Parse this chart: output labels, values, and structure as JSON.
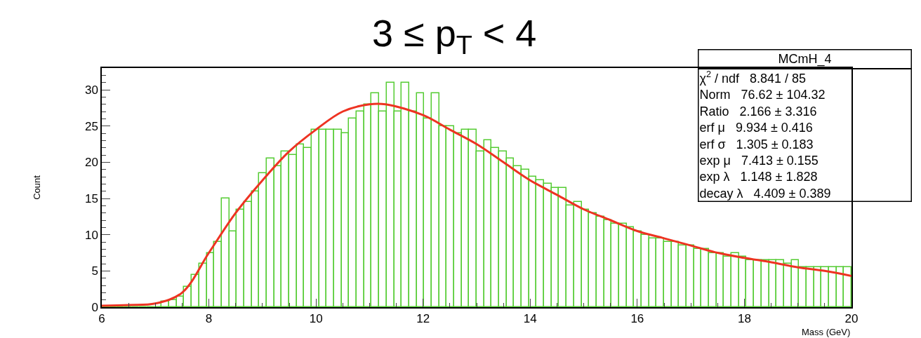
{
  "chart_data": {
    "type": "histogram",
    "title": "3 ≤ p$_{T}$ < 4",
    "xlabel": "Mass (GeV)",
    "ylabel": "Count",
    "bins": [
      6.0,
      6.14,
      6.28,
      6.42,
      6.56,
      6.7,
      6.84,
      6.98,
      7.12,
      7.26,
      7.4,
      7.54,
      7.68,
      7.82,
      7.96,
      8.1,
      8.24,
      8.38,
      8.52,
      8.66,
      8.8,
      8.94,
      9.08,
      9.22,
      9.36,
      9.5,
      9.64,
      9.78,
      9.92,
      10.06,
      10.2,
      10.34,
      10.48,
      10.62,
      10.76,
      10.9,
      11.04,
      11.18,
      11.32,
      11.46,
      11.6,
      11.74,
      11.88,
      12.02,
      12.16,
      12.3,
      12.44,
      12.58,
      12.72,
      12.86,
      13.0,
      13.14,
      13.28,
      13.42,
      13.56,
      13.7,
      13.84,
      13.98,
      14.12,
      14.26,
      14.4,
      14.54,
      14.68,
      14.82,
      14.96,
      15.1,
      15.24,
      15.38,
      15.52,
      15.66,
      15.8,
      15.94,
      16.08,
      16.22,
      16.36,
      16.5,
      16.64,
      16.78,
      16.92,
      17.06,
      17.2,
      17.34,
      17.48,
      17.62,
      17.76,
      17.9,
      18.04,
      18.18,
      18.32,
      18.46,
      18.6,
      18.74,
      18.88,
      19.02,
      19.16,
      19.3,
      19.44,
      19.58,
      19.72,
      19.86,
      20.0
    ],
    "values": [
      0,
      0,
      0,
      0,
      0,
      0,
      0,
      0,
      0.8,
      1,
      1.5,
      2.8,
      4.5,
      6,
      7.5,
      9,
      15,
      10.5,
      13.5,
      14.5,
      16,
      18.5,
      20.5,
      19.5,
      21.5,
      21,
      22.5,
      22,
      24.5,
      24.5,
      24.5,
      24.5,
      24,
      26,
      27,
      28,
      29.5,
      27,
      31,
      27,
      31,
      27,
      29.5,
      26,
      29.5,
      25,
      25,
      24,
      24.5,
      24.5,
      21.5,
      23,
      22,
      21.5,
      20.5,
      19.5,
      19,
      18,
      17.5,
      17,
      16.5,
      16.5,
      14,
      14.5,
      13.5,
      13,
      12.5,
      12,
      11.5,
      11.5,
      11,
      10.5,
      10,
      9.5,
      9.5,
      9,
      9,
      8.5,
      8.5,
      8,
      8,
      7.5,
      7.5,
      7,
      7.5,
      7,
      6.5,
      6.5,
      6.5,
      6.5,
      6.5,
      6,
      6.5,
      5.5,
      5.5,
      5.5,
      5.5,
      5.5,
      5.5,
      5.5
    ],
    "color": "#55cc33",
    "series": [
      {
        "type": "line",
        "color": "#ee3322",
        "x": [
          6,
          6.5,
          7,
          7.5,
          8,
          8.5,
          9,
          9.5,
          10,
          10.5,
          11,
          11.3,
          12,
          12.5,
          13,
          13.5,
          14,
          14.5,
          15,
          15.5,
          16,
          16.5,
          17,
          17.5,
          18,
          18.5,
          19,
          19.5,
          20
        ],
        "values": [
          0.2,
          0.3,
          0.5,
          2,
          7.5,
          13,
          17.5,
          21.5,
          24.5,
          27,
          28,
          28,
          26.5,
          24.5,
          22.5,
          20,
          17.5,
          15.5,
          13.5,
          12,
          10.5,
          9.5,
          8.5,
          7.5,
          6.8,
          6.2,
          5.5,
          5,
          4.3
        ]
      }
    ],
    "xlim": [
      6,
      20
    ],
    "xticks": [
      6,
      8,
      10,
      12,
      14,
      16,
      18,
      20
    ],
    "ylim": [
      0,
      33
    ],
    "yticks": [
      0,
      5,
      10,
      15,
      20,
      25,
      30
    ],
    "annotations": [
      "MCmH_4",
      "χ$^{2}$ / ndf   8.841 / 85",
      "Norm   76.62 ± 104.32",
      "Ratio   2.166 ± 3.316",
      "erf μ   9.934 ± 0.416",
      "erf σ   1.305 ± 0.183",
      "exp μ   7.413 ± 0.155",
      "exp λ   1.148 ± 1.828",
      "decay λ   4.409 ± 0.389"
    ]
  }
}
